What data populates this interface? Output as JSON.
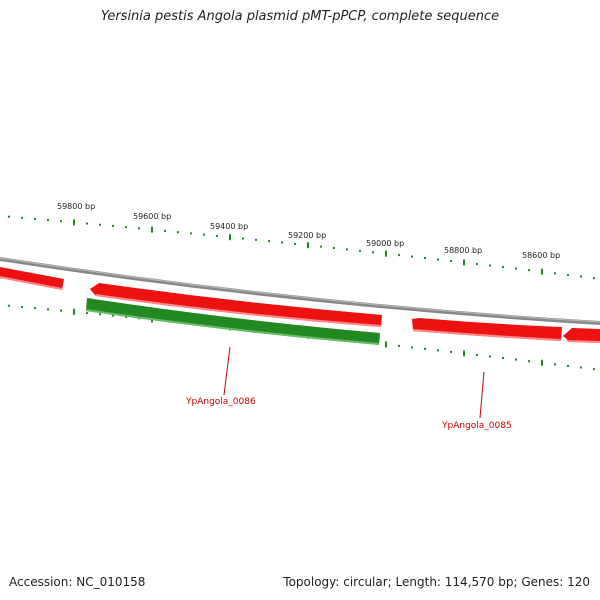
{
  "title": "Yersinia pestis Angola plasmid pMT-pPCP, complete sequence",
  "footer": {
    "accession": "Accession: NC_010158",
    "summary": "Topology: circular; Length: 114,570 bp; Genes: 120"
  },
  "scale_labels": [
    "59800 bp",
    "59600 bp",
    "59400 bp",
    "59200 bp",
    "59000 bp",
    "58800 bp",
    "58600 bp"
  ],
  "genes": [
    {
      "name": "",
      "strand": "forward",
      "color": "#ee1111"
    },
    {
      "name": "",
      "strand": "forward",
      "color": "#ee1111"
    },
    {
      "name": "YpAngola_0086",
      "strand": "reverse",
      "color": "#228822"
    },
    {
      "name": "YpAngola_0085",
      "strand": "forward",
      "color": "#ee1111"
    },
    {
      "name": "",
      "strand": "forward",
      "color": "#ee1111"
    }
  ],
  "colors": {
    "forward_gene": "#ee1111",
    "reverse_gene": "#228822",
    "backbone": "#888888",
    "ticks": "#228822",
    "label": "#cc0000"
  }
}
